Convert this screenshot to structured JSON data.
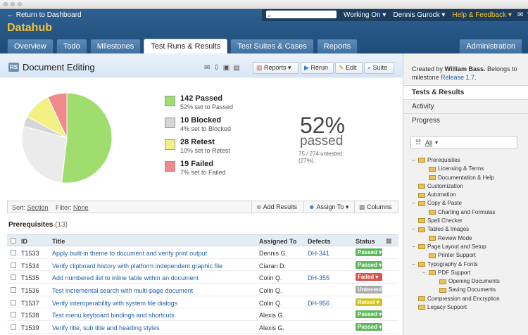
{
  "header": {
    "back_link": "← Return to Dashboard",
    "project": "Datahub",
    "working_on": "Working On",
    "user": "Dennis Gurock",
    "help": "Help & Feedback",
    "tabs": [
      "Overview",
      "Todo",
      "Milestones",
      "Test Runs & Results",
      "Test Suites & Cases",
      "Reports"
    ],
    "admin": "Administration"
  },
  "run": {
    "badge": "RS",
    "title": "Document Editing",
    "buttons": {
      "reports": "Reports",
      "rerun": "Rerun",
      "edit": "Edit",
      "suite": "Suite"
    }
  },
  "stats": {
    "passed": {
      "count": "142 Passed",
      "sub": "52% set to Passed",
      "color": "#9fdd6f"
    },
    "blocked": {
      "count": "10 Blocked",
      "sub": "4% set to Blocked",
      "color": "#d6d6d6"
    },
    "retest": {
      "count": "28 Retest",
      "sub": "10% set to Retest",
      "color": "#f2f085"
    },
    "failed": {
      "count": "19 Failed",
      "sub": "7% set to Failed",
      "color": "#f08a8a"
    },
    "percent": "52%",
    "percent_label": "passed",
    "untested": "75 / 274 untested (27%)."
  },
  "chart_data": {
    "type": "pie",
    "labels": [
      "Passed",
      "Blocked",
      "Retest",
      "Failed",
      "Untested"
    ],
    "values": [
      142,
      10,
      28,
      19,
      75
    ],
    "colors": [
      "#9fdd6f",
      "#d6d6d6",
      "#f2f085",
      "#f08a8a",
      "#ebebeb"
    ]
  },
  "filter_bar": {
    "sort_label": "Sort:",
    "sort_value": "Section",
    "filter_label": "Filter:",
    "filter_value": "None",
    "add_results": "Add Results",
    "assign_to": "Assign To",
    "columns": "Columns"
  },
  "section": {
    "title": "Prerequisites",
    "count": "(13)"
  },
  "table": {
    "headers": {
      "id": "ID",
      "title": "Title",
      "assigned": "Assigned To",
      "defects": "Defects",
      "status": "Status"
    },
    "rows": [
      {
        "id": "T1533",
        "title": "Apply built-in theme to document and verify print output",
        "assigned": "Dennis G.",
        "defect": "DH-341",
        "status": "Passed",
        "color": "#5cb85c"
      },
      {
        "id": "T1534",
        "title": "Verify clipboard history with platform independent graphic file",
        "assigned": "Ciaran D.",
        "defect": "",
        "status": "Passed",
        "color": "#5cb85c"
      },
      {
        "id": "T1535",
        "title": "Add numbered list to inline table within an document",
        "assigned": "Colin Q.",
        "defect": "DH-355",
        "status": "Failed",
        "color": "#d9534f"
      },
      {
        "id": "T1536",
        "title": "Test incremental search with multi-page document",
        "assigned": "Colin Q.",
        "defect": "",
        "status": "Untested",
        "color": "#a8a8a8"
      },
      {
        "id": "T1537",
        "title": "Verify interoperability with system file dialogs",
        "assigned": "Colin Q.",
        "defect": "DH-956",
        "status": "Retest",
        "color": "#d4c21c"
      },
      {
        "id": "T1538",
        "title": "Test menu keyboard bindings and shortcuts",
        "assigned": "Alexis G.",
        "defect": "",
        "status": "Passed",
        "color": "#5cb85c"
      },
      {
        "id": "T1539",
        "title": "Verify title, sub title and heading styles",
        "assigned": "Alexis G.",
        "defect": "",
        "status": "Passed",
        "color": "#5cb85c"
      }
    ]
  },
  "sidebar": {
    "created_prefix": "Created by ",
    "created_by": "William Bass.",
    "belongs": " Belongs to milestone ",
    "milestone": "Release 1.7",
    "tabs": [
      "Tests & Results",
      "Activity",
      "Progress"
    ],
    "all_label": "All",
    "tree": [
      {
        "label": "Prerequisites",
        "level": 0,
        "toggle": "−"
      },
      {
        "label": "Licensing & Terms",
        "level": 1,
        "toggle": ""
      },
      {
        "label": "Documentation & Help",
        "level": 1,
        "toggle": ""
      },
      {
        "label": "Customization",
        "level": 0,
        "toggle": ""
      },
      {
        "label": "Automation",
        "level": 0,
        "toggle": ""
      },
      {
        "label": "Copy & Paste",
        "level": 0,
        "toggle": "−"
      },
      {
        "label": "Charting and Formulas",
        "level": 1,
        "toggle": ""
      },
      {
        "label": "Spell Checker",
        "level": 0,
        "toggle": ""
      },
      {
        "label": "Tables & Images",
        "level": 0,
        "toggle": "−"
      },
      {
        "label": "Review Mode",
        "level": 1,
        "toggle": ""
      },
      {
        "label": "Page Layout and Setup",
        "level": 0,
        "toggle": "−"
      },
      {
        "label": "Printer Support",
        "level": 1,
        "toggle": ""
      },
      {
        "label": "Typography & Fonts",
        "level": 0,
        "toggle": "−"
      },
      {
        "label": "PDF Support",
        "level": 1,
        "toggle": "−"
      },
      {
        "label": "Opening Documents",
        "level": 2,
        "toggle": ""
      },
      {
        "label": "Saving Documents",
        "level": 2,
        "toggle": ""
      },
      {
        "label": "Compression and Encryption",
        "level": 0,
        "toggle": ""
      },
      {
        "label": "Legacy Support",
        "level": 0,
        "toggle": ""
      }
    ]
  }
}
